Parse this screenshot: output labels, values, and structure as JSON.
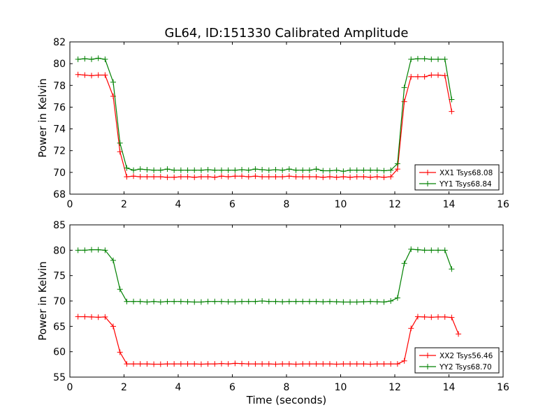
{
  "chart_data": {
    "title": "GL64, ID:151330 Calibrated Amplitude",
    "xlabel": "Time (seconds)",
    "panels": [
      {
        "type": "line",
        "ylabel": "Power in Kelvin",
        "xlim": [
          0,
          16
        ],
        "ylim": [
          68,
          82
        ],
        "xticks": [
          0,
          2,
          4,
          6,
          8,
          10,
          12,
          14,
          16
        ],
        "yticks": [
          68,
          70,
          72,
          74,
          76,
          78,
          80,
          82
        ],
        "legend_position": "lower-right",
        "x": [
          0.3,
          0.55,
          0.8,
          1.05,
          1.3,
          1.6,
          1.85,
          2.1,
          2.35,
          2.6,
          2.85,
          3.1,
          3.35,
          3.6,
          3.85,
          4.1,
          4.35,
          4.6,
          4.85,
          5.1,
          5.35,
          5.6,
          5.85,
          6.1,
          6.35,
          6.6,
          6.85,
          7.1,
          7.35,
          7.6,
          7.85,
          8.1,
          8.35,
          8.6,
          8.85,
          9.1,
          9.35,
          9.6,
          9.85,
          10.1,
          10.35,
          10.6,
          10.85,
          11.1,
          11.35,
          11.6,
          11.85,
          12.1,
          12.35,
          12.6,
          12.85,
          13.1,
          13.35,
          13.6,
          13.85,
          14.1,
          14.35
        ],
        "series": [
          {
            "name": "XX1 Tsys68.08",
            "color": "#ff0000",
            "values": [
              79.0,
              78.95,
              78.9,
              78.95,
              78.95,
              77.0,
              71.9,
              69.6,
              69.65,
              69.6,
              69.6,
              69.6,
              69.6,
              69.55,
              69.55,
              69.6,
              69.6,
              69.55,
              69.6,
              69.6,
              69.55,
              69.65,
              69.6,
              69.65,
              69.65,
              69.6,
              69.65,
              69.6,
              69.6,
              69.6,
              69.6,
              69.65,
              69.6,
              69.6,
              69.6,
              69.6,
              69.55,
              69.6,
              69.55,
              69.6,
              69.55,
              69.6,
              69.6,
              69.55,
              69.6,
              69.55,
              69.6,
              70.3,
              76.5,
              78.8,
              78.8,
              78.8,
              78.95,
              78.95,
              78.9,
              75.6,
              null
            ]
          },
          {
            "name": "YY1 Tsys68.84",
            "color": "#008000",
            "values": [
              80.4,
              80.45,
              80.4,
              80.5,
              80.4,
              78.3,
              72.7,
              70.4,
              70.2,
              70.3,
              70.25,
              70.2,
              70.2,
              70.3,
              70.2,
              70.2,
              70.2,
              70.2,
              70.2,
              70.25,
              70.2,
              70.2,
              70.2,
              70.2,
              70.25,
              70.2,
              70.3,
              70.25,
              70.2,
              70.25,
              70.2,
              70.3,
              70.2,
              70.2,
              70.2,
              70.3,
              70.15,
              70.15,
              70.2,
              70.1,
              70.2,
              70.2,
              70.2,
              70.2,
              70.2,
              70.15,
              70.2,
              70.8,
              77.8,
              80.4,
              80.45,
              80.45,
              80.4,
              80.4,
              80.4,
              76.7,
              null
            ]
          }
        ]
      },
      {
        "type": "line",
        "ylabel": "Power in Kelvin",
        "xlim": [
          0,
          16
        ],
        "ylim": [
          55,
          85
        ],
        "xticks": [
          0,
          2,
          4,
          6,
          8,
          10,
          12,
          14,
          16
        ],
        "yticks": [
          55,
          60,
          65,
          70,
          75,
          80,
          85
        ],
        "legend_position": "lower-right",
        "x": [
          0.3,
          0.55,
          0.8,
          1.05,
          1.3,
          1.6,
          1.85,
          2.1,
          2.35,
          2.6,
          2.85,
          3.1,
          3.35,
          3.6,
          3.85,
          4.1,
          4.35,
          4.6,
          4.85,
          5.1,
          5.35,
          5.6,
          5.85,
          6.1,
          6.35,
          6.6,
          6.85,
          7.1,
          7.35,
          7.6,
          7.85,
          8.1,
          8.35,
          8.6,
          8.85,
          9.1,
          9.35,
          9.6,
          9.85,
          10.1,
          10.35,
          10.6,
          10.85,
          11.1,
          11.35,
          11.6,
          11.85,
          12.1,
          12.35,
          12.6,
          12.85,
          13.1,
          13.35,
          13.6,
          13.85,
          14.1,
          14.35
        ],
        "series": [
          {
            "name": "XX2 Tsys56.46",
            "color": "#ff0000",
            "values": [
              66.9,
              66.9,
              66.85,
              66.8,
              66.85,
              65.0,
              59.9,
              57.6,
              57.6,
              57.6,
              57.6,
              57.55,
              57.55,
              57.6,
              57.6,
              57.6,
              57.6,
              57.6,
              57.55,
              57.6,
              57.6,
              57.65,
              57.6,
              57.7,
              57.65,
              57.6,
              57.6,
              57.6,
              57.6,
              57.55,
              57.6,
              57.6,
              57.55,
              57.6,
              57.6,
              57.6,
              57.6,
              57.6,
              57.55,
              57.6,
              57.6,
              57.6,
              57.6,
              57.55,
              57.6,
              57.6,
              57.6,
              57.6,
              58.2,
              64.6,
              66.9,
              66.85,
              66.8,
              66.85,
              66.85,
              66.75,
              63.5
            ]
          },
          {
            "name": "YY2 Tsys68.70",
            "color": "#008000",
            "values": [
              80.0,
              80.0,
              80.1,
              80.1,
              80.0,
              78.0,
              72.3,
              69.9,
              69.9,
              69.9,
              69.8,
              69.9,
              69.8,
              69.9,
              69.9,
              69.9,
              69.85,
              69.8,
              69.8,
              69.9,
              69.9,
              69.9,
              69.85,
              69.85,
              69.9,
              69.9,
              69.9,
              70.0,
              69.9,
              69.9,
              69.85,
              69.9,
              69.9,
              69.9,
              69.9,
              69.9,
              69.85,
              69.9,
              69.85,
              69.8,
              69.8,
              69.8,
              69.85,
              69.9,
              69.85,
              69.8,
              70.0,
              70.6,
              77.4,
              80.2,
              80.1,
              80.0,
              80.0,
              80.0,
              80.0,
              76.3,
              null
            ]
          }
        ]
      }
    ]
  }
}
